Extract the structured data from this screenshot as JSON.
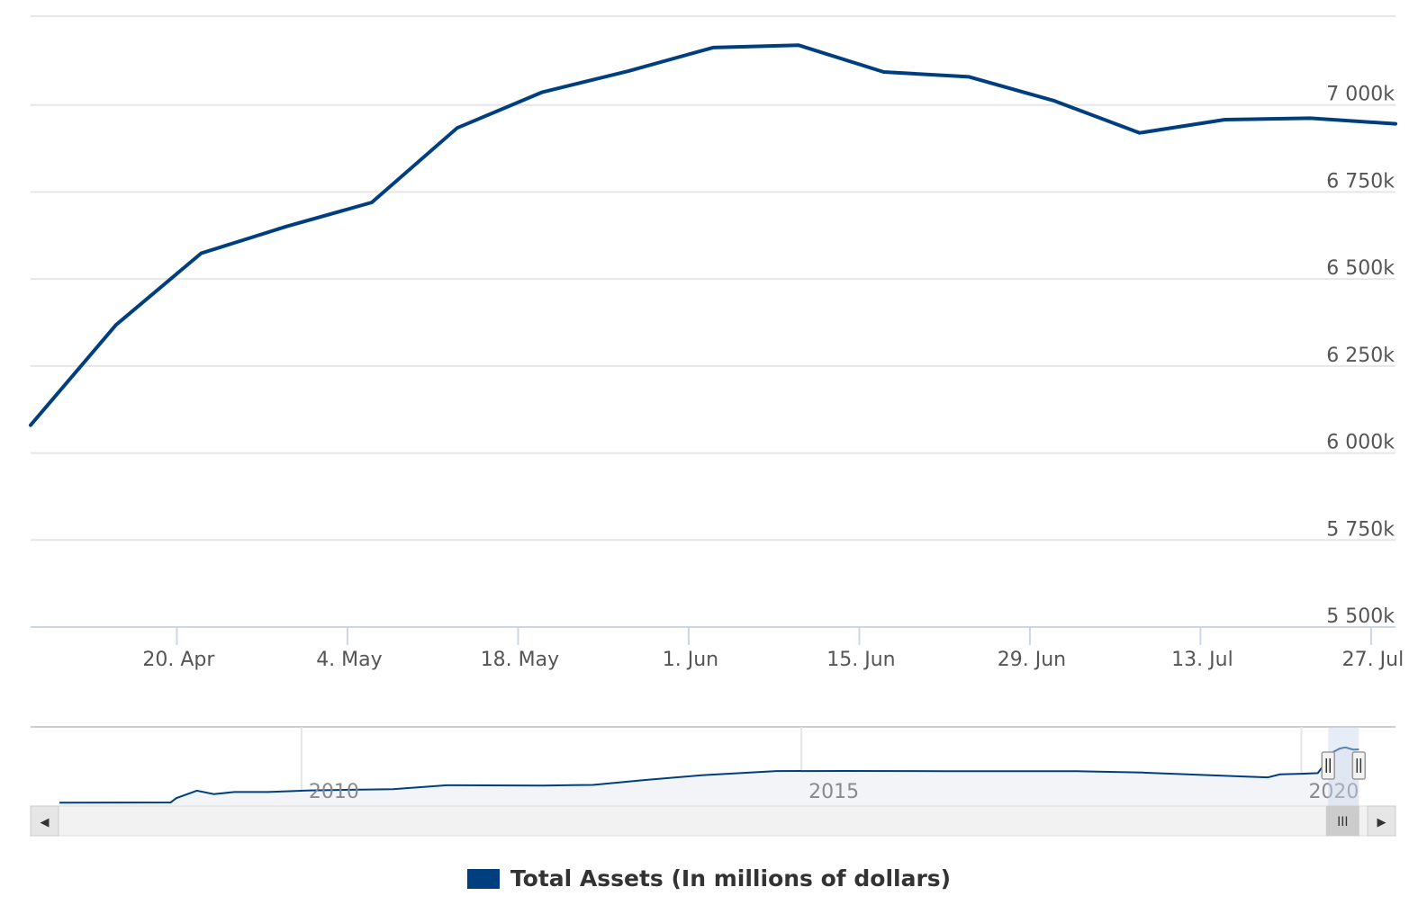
{
  "chart_data": {
    "type": "line",
    "x_type": "date",
    "series": [
      {
        "name": "Total Assets (In millions of dollars)",
        "color": "#003f7f",
        "points": [
          [
            "2020-04-08",
            6080000
          ],
          [
            "2020-04-15",
            6368000
          ],
          [
            "2020-04-22",
            6574000
          ],
          [
            "2020-04-29",
            6651000
          ],
          [
            "2020-05-06",
            6720000
          ],
          [
            "2020-05-13",
            6934000
          ],
          [
            "2020-05-20",
            7037000
          ],
          [
            "2020-05-27",
            7097000
          ],
          [
            "2020-06-03",
            7165000
          ],
          [
            "2020-06-10",
            7172000
          ],
          [
            "2020-06-17",
            7095000
          ],
          [
            "2020-06-24",
            7081000
          ],
          [
            "2020-07-01",
            7012000
          ],
          [
            "2020-07-08",
            6920000
          ],
          [
            "2020-07-15",
            6958000
          ],
          [
            "2020-07-22",
            6962000
          ],
          [
            "2020-07-29",
            6946000
          ]
        ]
      }
    ],
    "xlim": [
      "2020-04-08",
      "2020-07-29"
    ],
    "ylim": [
      5500000,
      7250000
    ],
    "y_ticks": [
      {
        "value": 5500000,
        "label": "5 500k"
      },
      {
        "value": 5750000,
        "label": "5 750k"
      },
      {
        "value": 6000000,
        "label": "6 000k"
      },
      {
        "value": 6250000,
        "label": "6 250k"
      },
      {
        "value": 6500000,
        "label": "6 500k"
      },
      {
        "value": 6750000,
        "label": "6 750k"
      },
      {
        "value": 7000000,
        "label": "7 000k"
      }
    ],
    "x_ticks": [
      {
        "date": "2020-04-20",
        "label": "20. Apr"
      },
      {
        "date": "2020-05-04",
        "label": "4. May"
      },
      {
        "date": "2020-05-18",
        "label": "18. May"
      },
      {
        "date": "2020-06-01",
        "label": "1. Jun"
      },
      {
        "date": "2020-06-15",
        "label": "15. Jun"
      },
      {
        "date": "2020-06-29",
        "label": "29. Jun"
      },
      {
        "date": "2020-07-13",
        "label": "13. Jul"
      },
      {
        "date": "2020-07-27",
        "label": "27. Jul"
      }
    ],
    "grid": true,
    "y_axis_side": "right",
    "legend": {
      "position": "bottom-center",
      "label": "Total Assets (In millions of dollars)"
    },
    "navigator": {
      "xlim": [
        "2007-08-01",
        "2020-08-20"
      ],
      "ylim": [
        500000,
        9500000
      ],
      "selected_range": [
        "2020-04-08",
        "2020-07-29"
      ],
      "tick_labels": [
        {
          "date": "2010-01-01",
          "label": "2010"
        },
        {
          "date": "2015-01-01",
          "label": "2015"
        },
        {
          "date": "2020-01-01",
          "label": "2020"
        }
      ],
      "series": [
        [
          "2007-08-01",
          880000
        ],
        [
          "2008-09-10",
          905000
        ],
        [
          "2008-10-01",
          1400000
        ],
        [
          "2008-12-15",
          2250000
        ],
        [
          "2009-02-15",
          1860000
        ],
        [
          "2009-05-01",
          2100000
        ],
        [
          "2009-09-01",
          2100000
        ],
        [
          "2010-02-01",
          2280000
        ],
        [
          "2010-12-01",
          2420000
        ],
        [
          "2011-06-15",
          2860000
        ],
        [
          "2012-06-01",
          2830000
        ],
        [
          "2012-12-01",
          2900000
        ],
        [
          "2013-06-01",
          3450000
        ],
        [
          "2014-01-01",
          4000000
        ],
        [
          "2014-10-01",
          4480000
        ],
        [
          "2015-06-01",
          4490000
        ],
        [
          "2016-06-01",
          4470000
        ],
        [
          "2017-10-01",
          4460000
        ],
        [
          "2018-06-01",
          4300000
        ],
        [
          "2019-06-01",
          3860000
        ],
        [
          "2019-09-01",
          3760000
        ],
        [
          "2019-10-15",
          4100000
        ],
        [
          "2020-01-01",
          4170000
        ],
        [
          "2020-03-01",
          4240000
        ],
        [
          "2020-03-25",
          5250000
        ],
        [
          "2020-04-08",
          6080000
        ],
        [
          "2020-04-22",
          6574000
        ],
        [
          "2020-05-20",
          7037000
        ],
        [
          "2020-06-10",
          7172000
        ],
        [
          "2020-07-08",
          6920000
        ],
        [
          "2020-07-29",
          6946000
        ]
      ]
    }
  },
  "colors": {
    "series_line": "#003f7f",
    "grid": "#e6e6e6",
    "axis_line": "#ccd6eb",
    "navigator_fill": "#f2f4f8",
    "navigator_mask": "#c9d6ea",
    "scrollbar_track": "#f2f2f2",
    "scrollbar_button": "#e6e6e6"
  },
  "icons": {
    "scroll_left": "◀",
    "scroll_right": "▶",
    "scroll_grip": "III"
  },
  "legend": {
    "label": "Total Assets (In millions of dollars)"
  }
}
